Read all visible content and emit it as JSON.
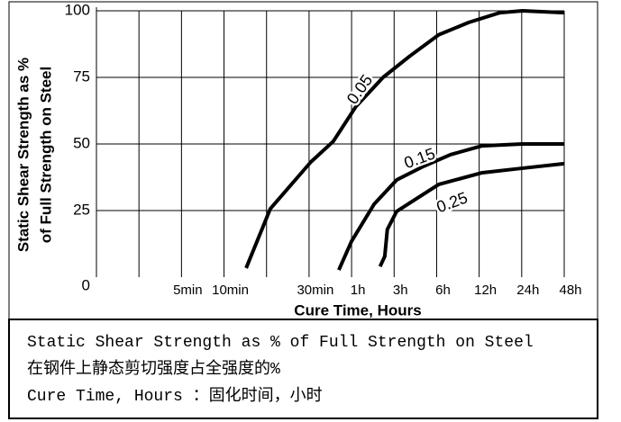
{
  "chart_data": {
    "type": "line",
    "xlabel": "Cure Time, Hours",
    "ylabel": [
      "Static Shear Strength as %",
      "of Full Strength on Steel"
    ],
    "xlim": [
      0,
      11
    ],
    "ylim": [
      0,
      100
    ],
    "xticks": [
      {
        "value": 2,
        "label": "5min"
      },
      {
        "value": 3,
        "label": "10min"
      },
      {
        "value": 5,
        "label": "30min"
      },
      {
        "value": 6,
        "label": "1h"
      },
      {
        "value": 7,
        "label": "3h"
      },
      {
        "value": 8,
        "label": "6h"
      },
      {
        "value": 9,
        "label": "12h"
      },
      {
        "value": 10,
        "label": "24h"
      },
      {
        "value": 11,
        "label": "48h"
      }
    ],
    "xgrid": [
      1,
      2,
      3,
      4,
      5,
      6,
      7,
      8,
      9,
      10,
      11
    ],
    "yticks": [
      0,
      25,
      50,
      75,
      100
    ],
    "grid": true,
    "color": "#000000",
    "series": [
      {
        "name": "0.05",
        "x": [
          3.52,
          4.09,
          5.04,
          5.57,
          6.1,
          6.74,
          7.37,
          8.05,
          8.75,
          9.49,
          10.02,
          11
        ],
        "values": [
          3.4,
          25.7,
          43.2,
          51,
          64,
          75,
          83,
          91,
          95.6,
          99.3,
          100,
          99.3
        ]
      },
      {
        "name": "0.15",
        "x": [
          5.7,
          6.0,
          6.53,
          7.06,
          7.69,
          8.33,
          9.07,
          10.02,
          11
        ],
        "values": [
          2.7,
          13.5,
          27.4,
          36.5,
          41.6,
          46,
          49.3,
          50,
          50
        ]
      },
      {
        "name": "0.25",
        "x": [
          6.67,
          6.78,
          6.84,
          7.06,
          7.48,
          8.05,
          9.07,
          10.02,
          11
        ],
        "values": [
          4,
          7.8,
          17.9,
          24.7,
          29,
          34.8,
          39.2,
          40.9,
          42.6
        ]
      }
    ]
  },
  "caption": {
    "lines": [
      "Static Shear Strength as %  of Full Strength on Steel",
      "在钢件上静态剪切强度占全强度的%",
      "Cure Time, Hours  ：固化时间，小时"
    ]
  }
}
